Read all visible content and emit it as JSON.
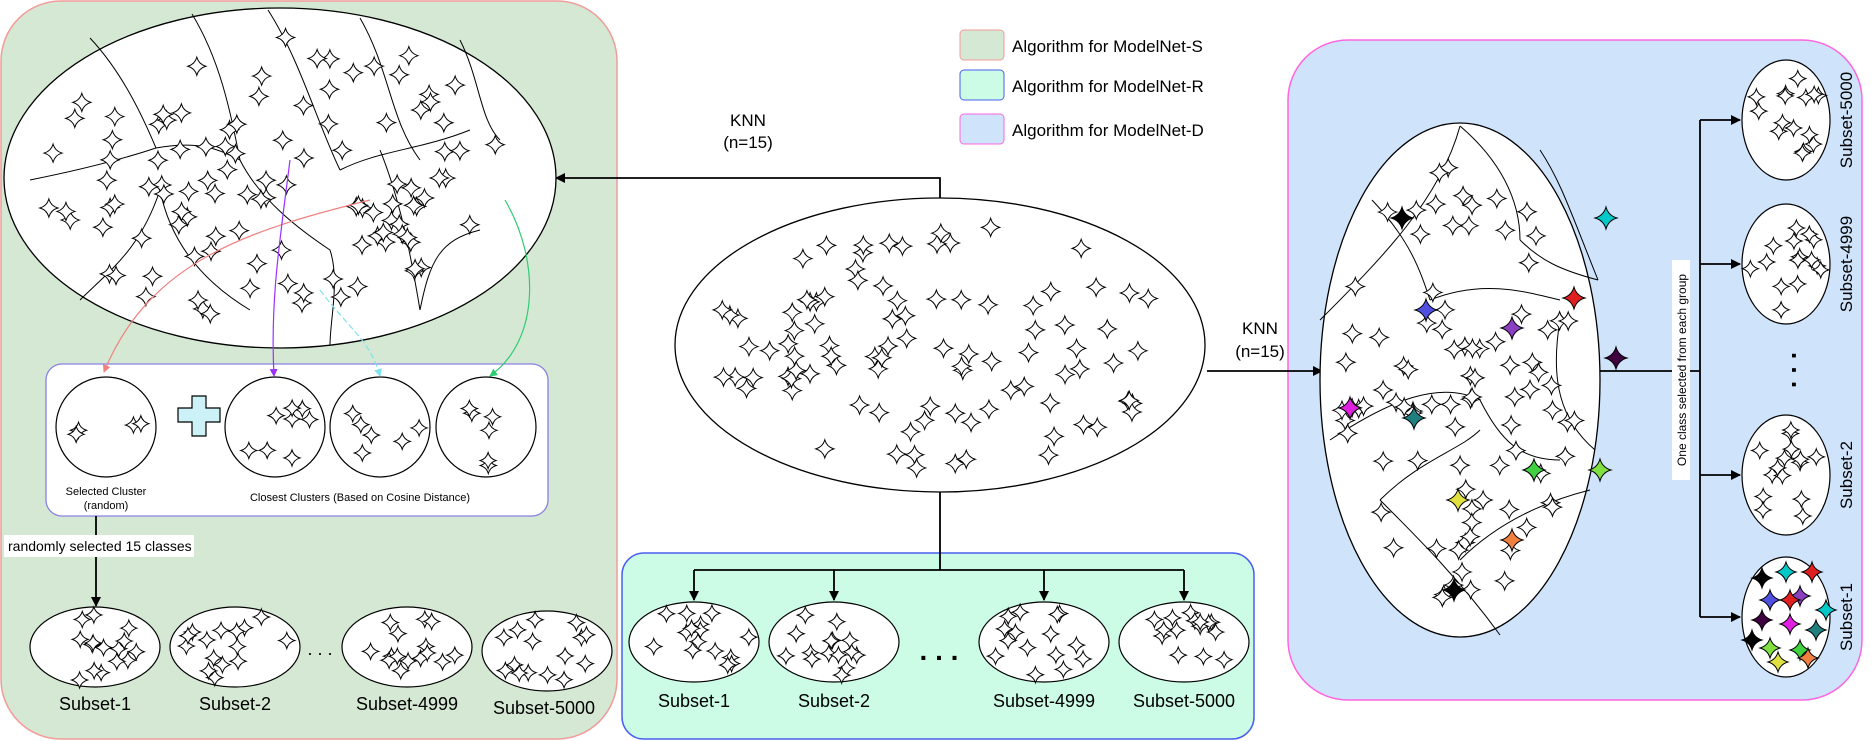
{
  "legend": [
    {
      "label": "Algorithm for ModelNet-S",
      "fill": "#d5e8d4",
      "stroke": "#f19c99"
    },
    {
      "label": "Algorithm for ModelNet-R",
      "fill": "#ccfbe6",
      "stroke": "#4a5ff0"
    },
    {
      "label": "Algorithm for ModelNet-D",
      "fill": "#cfe3fb",
      "stroke": "#ff66e0"
    }
  ],
  "knn_left": {
    "line1": "KNN",
    "line2": "(n=15)"
  },
  "knn_right": {
    "line1": "KNN",
    "line2": "(n=15)"
  },
  "panel_s": {
    "selected_caption_1": "Selected Cluster",
    "selected_caption_2": "(random)",
    "closest_caption": "Closest Clusters (Based on Cosine Distance)",
    "random_label": "randomly selected 15 classes",
    "subsets": [
      "Subset-1",
      "Subset-2",
      "Subset-4999",
      "Subset-5000"
    ],
    "ellipsis": ". . ."
  },
  "panel_r": {
    "subsets": [
      "Subset-1",
      "Subset-2",
      "Subset-4999",
      "Subset-5000"
    ],
    "ellipsis": ". . ."
  },
  "panel_d": {
    "group_label": "One class selected from each group",
    "subsets": [
      "Subset-5000",
      "Subset-4999",
      "Subset-2",
      "Subset-1"
    ],
    "ellipsis": ". . ."
  },
  "colors": {
    "green_panel": "#d5e8d4",
    "mint_panel": "#ccfbe6",
    "blue_panel": "#cfe3fb",
    "highlight_stars": [
      "#000000",
      "#00c8c8",
      "#e02020",
      "#5050e0",
      "#8a40c0",
      "#400040",
      "#e020e0",
      "#208080",
      "#80e040",
      "#40d040",
      "#e0e040",
      "#f08040"
    ]
  }
}
